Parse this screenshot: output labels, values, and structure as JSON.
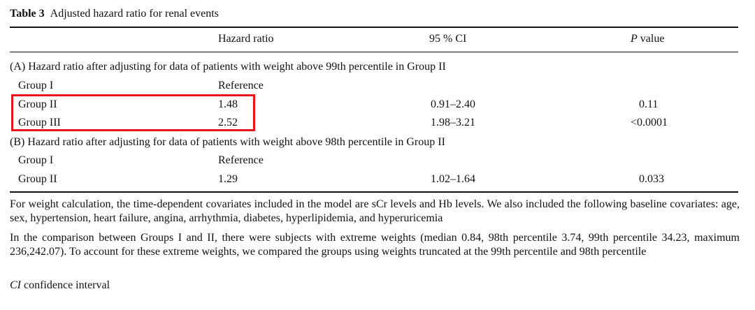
{
  "caption": {
    "label": "Table 3",
    "title": "Adjusted hazard ratio for renal events"
  },
  "headers": {
    "hazard_ratio": "Hazard ratio",
    "ci": "95 % CI",
    "p_italic": "P",
    "p_rest": " value"
  },
  "sections": [
    {
      "title": "(A) Hazard ratio after adjusting for data of patients with weight above 99th percentile in Group II",
      "rows": [
        {
          "group": "Group I",
          "hr": "Reference",
          "ci": "",
          "p": ""
        },
        {
          "group": "Group II",
          "hr": "1.48",
          "ci": "0.91–2.40",
          "p": "0.11"
        },
        {
          "group": "Group III",
          "hr": "2.52",
          "ci": "1.98–3.21",
          "p": "<0.0001"
        }
      ]
    },
    {
      "title": "(B) Hazard ratio after adjusting for data of patients with weight above 98th percentile in Group II",
      "rows": [
        {
          "group": "Group I",
          "hr": "Reference",
          "ci": "",
          "p": ""
        },
        {
          "group": "Group II",
          "hr": "1.29",
          "ci": "1.02–1.64",
          "p": "0.033"
        }
      ]
    }
  ],
  "notes": {
    "note1": "For weight calculation, the time-dependent covariates included in the model are sCr levels and Hb levels. We also included the following baseline covariates: age, sex, hypertension, heart failure, angina, arrhythmia, diabetes, hyperlipidemia, and hyperuricemia",
    "note2": "In the comparison between Groups I and II, there were subjects with extreme weights (median 0.84, 98th percentile 3.74, 99th percentile 34.23, maximum 236,242.07). To account for these extreme weights, we compared the groups using weights truncated at the 99th percentile and 98th percentile",
    "abbr_term": "CI",
    "abbr_def": " confidence interval"
  },
  "colors": {
    "highlight_border": "#e8141b"
  }
}
